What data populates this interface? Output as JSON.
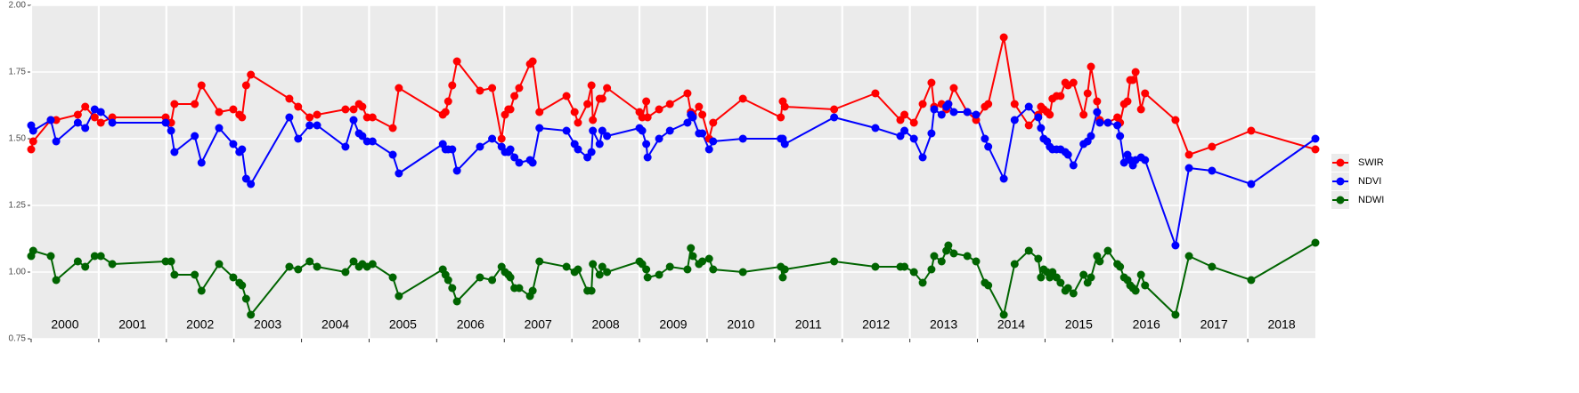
{
  "chart_data": {
    "type": "line",
    "x": [
      2000.0,
      2000.03,
      2000.29,
      2000.37,
      2000.69,
      2000.8,
      2000.94,
      2001.03,
      2001.2,
      2001.99,
      2002.07,
      2002.12,
      2002.42,
      2002.52,
      2002.78,
      2002.99,
      2003.08,
      2003.12,
      2003.18,
      2003.25,
      2003.82,
      2003.95,
      2004.12,
      2004.23,
      2004.65,
      2004.77,
      2004.85,
      2004.9,
      2004.97,
      2005.05,
      2005.35,
      2005.44,
      2006.09,
      2006.13,
      2006.17,
      2006.23,
      2006.3,
      2006.64,
      2006.82,
      2006.96,
      2007.01,
      2007.06,
      2007.09,
      2007.15,
      2007.22,
      2007.38,
      2007.42,
      2007.52,
      2007.92,
      2008.04,
      2008.09,
      2008.23,
      2008.29,
      2008.31,
      2008.41,
      2008.45,
      2008.52,
      2009.0,
      2009.04,
      2009.1,
      2009.12,
      2009.29,
      2009.45,
      2009.71,
      2009.76,
      2009.79,
      2009.88,
      2009.93,
      2010.03,
      2010.09,
      2010.53,
      2011.09,
      2011.12,
      2011.15,
      2011.88,
      2012.49,
      2012.86,
      2012.92,
      2013.06,
      2013.19,
      2013.32,
      2013.36,
      2013.47,
      2013.54,
      2013.57,
      2013.65,
      2013.85,
      2013.98,
      2014.11,
      2014.16,
      2014.39,
      2014.55,
      2014.76,
      2014.9,
      2014.94,
      2014.98,
      2015.03,
      2015.07,
      2015.11,
      2015.17,
      2015.23,
      2015.3,
      2015.34,
      2015.42,
      2015.57,
      2015.63,
      2015.68,
      2015.77,
      2015.81,
      2015.93,
      2016.07,
      2016.11,
      2016.17,
      2016.22,
      2016.26,
      2016.3,
      2016.34,
      2016.42,
      2016.48,
      2016.93,
      2017.13,
      2017.47,
      2018.05,
      2019.0
    ],
    "series": [
      {
        "name": "SWIR",
        "color": "#ff0000",
        "values": [
          1.46,
          1.49,
          1.57,
          1.57,
          1.59,
          1.62,
          1.58,
          1.56,
          1.58,
          1.58,
          1.56,
          1.63,
          1.63,
          1.7,
          1.6,
          1.61,
          1.59,
          1.58,
          1.7,
          1.74,
          1.65,
          1.62,
          1.58,
          1.59,
          1.61,
          1.61,
          1.63,
          1.62,
          1.58,
          1.58,
          1.54,
          1.69,
          1.59,
          1.6,
          1.64,
          1.7,
          1.79,
          1.68,
          1.69,
          1.5,
          1.59,
          1.61,
          1.61,
          1.66,
          1.69,
          1.78,
          1.79,
          1.6,
          1.66,
          1.6,
          1.56,
          1.63,
          1.7,
          1.57,
          1.65,
          1.65,
          1.69,
          1.6,
          1.58,
          1.64,
          1.58,
          1.61,
          1.63,
          1.67,
          1.6,
          1.59,
          1.62,
          1.59,
          1.5,
          1.56,
          1.65,
          1.58,
          1.64,
          1.62,
          1.61,
          1.67,
          1.57,
          1.59,
          1.56,
          1.63,
          1.71,
          1.62,
          1.63,
          1.61,
          1.63,
          1.69,
          1.6,
          1.57,
          1.62,
          1.63,
          1.88,
          1.63,
          1.55,
          1.59,
          1.62,
          1.61,
          1.6,
          1.59,
          1.65,
          1.66,
          1.66,
          1.71,
          1.7,
          1.71,
          1.59,
          1.67,
          1.77,
          1.64,
          1.57,
          1.56,
          1.58,
          1.56,
          1.63,
          1.64,
          1.72,
          1.72,
          1.75,
          1.61,
          1.67,
          1.57,
          1.44,
          1.47,
          1.53,
          1.46
        ]
      },
      {
        "name": "NDVI",
        "color": "#0000ff",
        "values": [
          1.55,
          1.53,
          1.57,
          1.49,
          1.56,
          1.54,
          1.61,
          1.6,
          1.56,
          1.56,
          1.53,
          1.45,
          1.51,
          1.41,
          1.54,
          1.48,
          1.45,
          1.46,
          1.35,
          1.33,
          1.58,
          1.5,
          1.55,
          1.55,
          1.47,
          1.57,
          1.52,
          1.51,
          1.49,
          1.49,
          1.44,
          1.37,
          1.48,
          1.46,
          1.46,
          1.46,
          1.38,
          1.47,
          1.5,
          1.47,
          1.45,
          1.45,
          1.46,
          1.43,
          1.41,
          1.42,
          1.41,
          1.54,
          1.53,
          1.48,
          1.46,
          1.43,
          1.45,
          1.53,
          1.48,
          1.53,
          1.51,
          1.54,
          1.53,
          1.48,
          1.43,
          1.5,
          1.53,
          1.56,
          1.59,
          1.58,
          1.52,
          1.52,
          1.46,
          1.49,
          1.5,
          1.5,
          1.5,
          1.48,
          1.58,
          1.54,
          1.51,
          1.53,
          1.5,
          1.43,
          1.52,
          1.61,
          1.59,
          1.62,
          1.63,
          1.6,
          1.6,
          1.59,
          1.5,
          1.47,
          1.35,
          1.57,
          1.62,
          1.58,
          1.54,
          1.5,
          1.49,
          1.47,
          1.46,
          1.46,
          1.46,
          1.45,
          1.44,
          1.4,
          1.48,
          1.49,
          1.51,
          1.6,
          1.56,
          1.56,
          1.55,
          1.51,
          1.41,
          1.44,
          1.42,
          1.4,
          1.42,
          1.43,
          1.42,
          1.1,
          1.39,
          1.38,
          1.33,
          1.5
        ]
      },
      {
        "name": "NDWI",
        "color": "#006400",
        "values": [
          1.06,
          1.08,
          1.06,
          0.97,
          1.04,
          1.02,
          1.06,
          1.06,
          1.03,
          1.04,
          1.04,
          0.99,
          0.99,
          0.93,
          1.03,
          0.98,
          0.96,
          0.95,
          0.9,
          0.84,
          1.02,
          1.01,
          1.04,
          1.02,
          1.0,
          1.04,
          1.02,
          1.03,
          1.02,
          1.03,
          0.98,
          0.91,
          1.01,
          0.99,
          0.97,
          0.94,
          0.89,
          0.98,
          0.97,
          1.02,
          1.0,
          0.99,
          0.98,
          0.94,
          0.94,
          0.91,
          0.93,
          1.04,
          1.02,
          1.0,
          1.01,
          0.93,
          0.93,
          1.03,
          0.99,
          1.02,
          1.0,
          1.04,
          1.03,
          1.01,
          0.98,
          0.99,
          1.02,
          1.01,
          1.09,
          1.06,
          1.03,
          1.04,
          1.05,
          1.01,
          1.0,
          1.02,
          0.98,
          1.01,
          1.04,
          1.02,
          1.02,
          1.02,
          1.0,
          0.96,
          1.01,
          1.06,
          1.04,
          1.08,
          1.1,
          1.07,
          1.06,
          1.04,
          0.96,
          0.95,
          0.84,
          1.03,
          1.08,
          1.05,
          0.98,
          1.01,
          1.0,
          0.98,
          1.0,
          0.98,
          0.96,
          0.93,
          0.94,
          0.92,
          0.99,
          0.96,
          0.98,
          1.06,
          1.04,
          1.08,
          1.03,
          1.02,
          0.98,
          0.97,
          0.95,
          0.94,
          0.93,
          0.99,
          0.95,
          0.84,
          1.06,
          1.02,
          0.97,
          1.11
        ]
      }
    ],
    "xlim": [
      2000,
      2019
    ],
    "xticks": [
      2000,
      2001,
      2002,
      2003,
      2004,
      2005,
      2006,
      2007,
      2008,
      2009,
      2010,
      2011,
      2012,
      2013,
      2014,
      2015,
      2016,
      2017,
      2018
    ],
    "year_labels": [
      "2000",
      "2001",
      "2002",
      "2003",
      "2004",
      "2005",
      "2006",
      "2007",
      "2008",
      "2009",
      "2010",
      "2011",
      "2012",
      "2013",
      "2014",
      "2015",
      "2016",
      "2017",
      "2018"
    ],
    "ylim": [
      0.75,
      2.0
    ],
    "yticks": [
      0.75,
      {
        "value": 1.0,
        "label": "1.00"
      },
      1.25,
      {
        "value": 1.5,
        "label": "1.50"
      },
      1.75,
      {
        "value": 2.0,
        "label": "2.00"
      }
    ],
    "grid": true,
    "legend": "right"
  }
}
